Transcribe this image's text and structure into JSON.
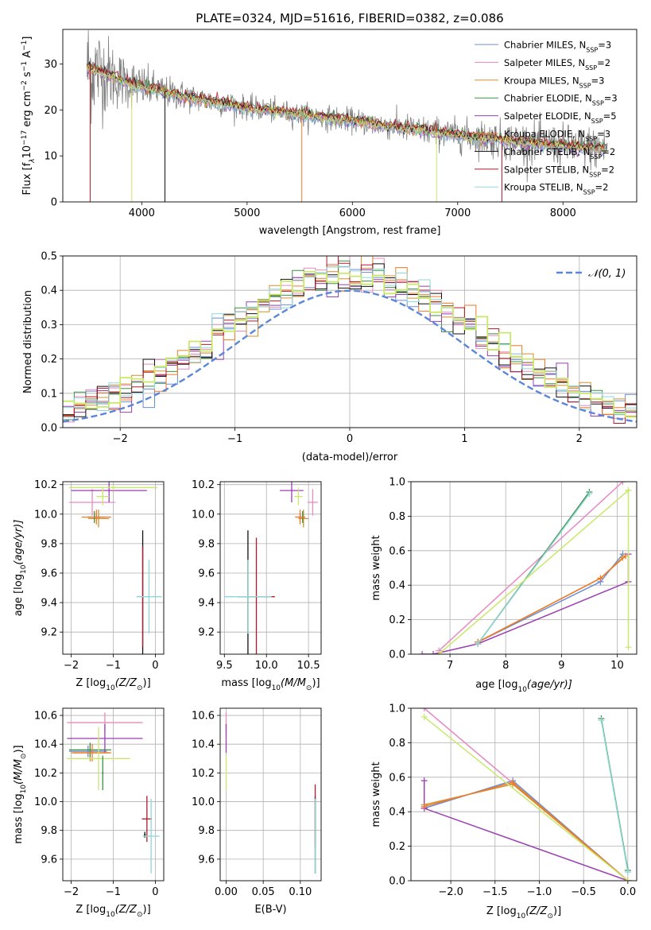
{
  "title": "PLATE=0324, MJD=51616, FIBERID=0382, z=0.086",
  "colors": {
    "Chabrier MILES": "#6b8fd6",
    "Salpeter MILES": "#e889c0",
    "Kroupa MILES": "#d38f2c",
    "Chabrier ELODIE": "#3f8f47",
    "Salpeter ELODIE": "#9b3fb3",
    "Kroupa ELODIE": "#f07a28",
    "Chabrier STELIB": "#111111",
    "Salpeter STELIB": "#b01a2a",
    "Kroupa STELIB": "#8fd7d6",
    "data": "#808080",
    "lime": "#c9e86a",
    "normal": "#5b86d9"
  },
  "legend_spectrum": [
    {
      "name": "Chabrier MILES",
      "label": "Chabrier MILES, N",
      "sub": "SSP",
      "tail": "=3"
    },
    {
      "name": "Salpeter MILES",
      "label": "Salpeter MILES, N",
      "sub": "SSP",
      "tail": "=2"
    },
    {
      "name": "Kroupa MILES",
      "label": "Kroupa MILES, N",
      "sub": "SSP",
      "tail": "=3"
    },
    {
      "name": "Chabrier ELODIE",
      "label": "Chabrier ELODIE, N",
      "sub": "SSP",
      "tail": "=3"
    },
    {
      "name": "Salpeter ELODIE",
      "label": "Salpeter ELODIE, N",
      "sub": "SSP",
      "tail": "=5"
    },
    {
      "name": "Kroupa ELODIE",
      "label": "Kroupa ELODIE, N",
      "sub": "SSP",
      "tail": "=3"
    },
    {
      "name": "Chabrier STELIB",
      "label": "Chabrier STELIB, N",
      "sub": "SSP",
      "tail": "=2"
    },
    {
      "name": "Salpeter STELIB",
      "label": "Salpeter STELIB, N",
      "sub": "SSP",
      "tail": "=2"
    },
    {
      "name": "Kroupa STELIB",
      "label": "Kroupa STELIB, N",
      "sub": "SSP",
      "tail": "=2"
    }
  ],
  "chart_data": [
    {
      "type": "line",
      "id": "spectrum",
      "title": "PLATE=0324, MJD=51616, FIBERID=0382, z=0.086",
      "xlabel": "wavelength [Angstrom, rest frame]",
      "ylabel_parts": [
        "Flux [f",
        "λ",
        "10",
        "−17",
        " erg cm",
        "−2",
        " s",
        "−1",
        " A",
        "−1",
        "]"
      ],
      "xlim": [
        3250,
        8700
      ],
      "ylim": [
        0,
        37.5
      ],
      "xticks": [
        4000,
        5000,
        6000,
        7000,
        8000
      ],
      "yticks": [
        0,
        10,
        20,
        30
      ],
      "continuum": {
        "x": [
          3500,
          3600,
          3800,
          4000,
          4500,
          5000,
          5500,
          6000,
          6500,
          7000,
          7500,
          8000,
          8400
        ],
        "y": [
          29,
          28.5,
          26.5,
          25,
          22.5,
          20.5,
          19,
          17.7,
          16,
          14.5,
          13.3,
          12.2,
          11.5
        ]
      },
      "noise_sigma": {
        "x": [
          3500,
          3800,
          4200,
          5000,
          6000,
          7000,
          7500,
          8000,
          8400
        ],
        "y": [
          12,
          6,
          3.5,
          2.5,
          2.6,
          3.5,
          4.2,
          4.5,
          4.8
        ]
      },
      "grid": false,
      "legend_position": "upper-right"
    },
    {
      "type": "line",
      "id": "residuals",
      "xlabel": "(data-model)/error",
      "ylabel": "Normed distribution",
      "xlim": [
        -2.5,
        2.5
      ],
      "ylim": [
        0,
        0.5
      ],
      "xticks": [
        -2,
        -1,
        0,
        1,
        2
      ],
      "yticks": [
        0,
        0.1,
        0.2,
        0.3,
        0.4,
        0.5
      ],
      "bin_width": 0.1,
      "reference": {
        "name": "N(0,1)",
        "label": "𝒩(0, 1)",
        "mean": 0,
        "sigma": 1
      },
      "grid": true,
      "legend_position": "upper-right"
    },
    {
      "type": "scatter",
      "id": "age_vs_Z",
      "xlabel_parts": [
        "Z [log",
        "10",
        "(Z/Z",
        "⊙",
        ")]"
      ],
      "ylabel_parts": [
        "age  [log",
        "10",
        "(age/yr)]"
      ],
      "xlim": [
        -2.2,
        0.2
      ],
      "ylim": [
        9.05,
        10.22
      ],
      "xticks": [
        -2,
        -1,
        0
      ],
      "yticks": [
        9.2,
        9.4,
        9.6,
        9.8,
        10.0,
        10.2
      ],
      "points": [
        {
          "s": "Chabrier MILES",
          "x": -1.4,
          "xe": 0.2,
          "y": 9.98,
          "ye": 0.03
        },
        {
          "s": "Salpeter MILES",
          "x": -1.5,
          "xe": 0.55,
          "y": 10.08,
          "ye": 0.09
        },
        {
          "s": "Kroupa MILES",
          "x": -1.35,
          "xe": 0.25,
          "y": 9.97,
          "ye": 0.06
        },
        {
          "s": "Chabrier ELODIE",
          "x": -1.45,
          "xe": 0.15,
          "y": 9.98,
          "ye": 0.04
        },
        {
          "s": "Salpeter ELODIE",
          "x": -1.1,
          "xe": 0.9,
          "y": 10.16,
          "ye": 0.08
        },
        {
          "s": "Kroupa ELODIE",
          "x": -1.4,
          "xe": 0.35,
          "y": 9.98,
          "ye": 0.05
        },
        {
          "s": "Chabrier STELIB",
          "x": -0.3,
          "xe": 0.02,
          "y": 9.44,
          "ye": 0.45
        },
        {
          "s": "Salpeter STELIB",
          "x": -0.3,
          "xe": 0.02,
          "y": 9.44,
          "ye": 0.34
        },
        {
          "s": "Kroupa STELIB",
          "x": -0.15,
          "xe": 0.3,
          "y": 9.44,
          "ye": 0.25
        },
        {
          "s": "lime",
          "x": -1.0,
          "xe": 1.05,
          "y": 10.18,
          "ye": 0.02
        },
        {
          "s": "lime",
          "x": -1.25,
          "xe": 0.15,
          "y": 10.12,
          "ye": 0.06
        }
      ],
      "grid": true
    },
    {
      "type": "scatter",
      "id": "age_vs_mass",
      "xlabel_parts": [
        "mass [log",
        "10",
        "(M/M",
        "⊙",
        ")]"
      ],
      "xlim": [
        9.45,
        10.65
      ],
      "ylim": [
        9.05,
        10.22
      ],
      "xticks": [
        9.5,
        10.0,
        10.5
      ],
      "yticks": [
        9.2,
        9.4,
        9.6,
        9.8,
        10.0,
        10.2
      ],
      "points": [
        {
          "s": "Chabrier MILES",
          "x": 10.4,
          "xe": 0.04,
          "y": 9.98,
          "ye": 0.03
        },
        {
          "s": "Salpeter MILES",
          "x": 10.55,
          "xe": 0.06,
          "y": 10.08,
          "ye": 0.09
        },
        {
          "s": "Kroupa MILES",
          "x": 10.44,
          "xe": 0.06,
          "y": 9.97,
          "ye": 0.06
        },
        {
          "s": "Chabrier ELODIE",
          "x": 10.43,
          "xe": 0.03,
          "y": 9.98,
          "ye": 0.04
        },
        {
          "s": "Salpeter ELODIE",
          "x": 10.3,
          "xe": 0.14,
          "y": 10.16,
          "ye": 0.08
        },
        {
          "s": "Kroupa ELODIE",
          "x": 10.4,
          "xe": 0.06,
          "y": 9.98,
          "ye": 0.05
        },
        {
          "s": "Chabrier STELIB",
          "x": 9.78,
          "xe": 0.02,
          "y": 9.44,
          "ye": 0.45
        },
        {
          "s": "Salpeter STELIB",
          "x": 9.88,
          "xe": 0.22,
          "y": 9.44,
          "ye": 0.4
        },
        {
          "s": "Kroupa STELIB",
          "x": 9.78,
          "xe": 0.28,
          "y": 9.44,
          "ye": 0.25
        },
        {
          "s": "lime",
          "x": 10.38,
          "xe": 0.05,
          "y": 10.12,
          "ye": 0.06
        }
      ],
      "grid": true
    },
    {
      "type": "line",
      "id": "massweight_vs_age",
      "xlabel_parts": [
        "age  [log",
        "10",
        "(age/yr)]"
      ],
      "ylabel": "mass weight",
      "xlim": [
        6.3,
        10.35
      ],
      "ylim": [
        0,
        1
      ],
      "xticks": [
        7,
        8,
        9,
        10
      ],
      "yticks": [
        0,
        0.2,
        0.4,
        0.6,
        0.8,
        1.0
      ],
      "series": [
        {
          "s": "Chabrier MILES",
          "x": [
            7.5,
            9.7,
            10.1
          ],
          "y": [
            0.07,
            0.42,
            0.58
          ]
        },
        {
          "s": "Salpeter MILES",
          "x": [
            6.8,
            10.1
          ],
          "y": [
            0.02,
            1.0
          ]
        },
        {
          "s": "Kroupa MILES",
          "x": [
            7.5,
            9.7,
            10.1
          ],
          "y": [
            0.07,
            0.44,
            0.56
          ]
        },
        {
          "s": "Chabrier ELODIE",
          "x": [
            7.5,
            9.5
          ],
          "y": [
            0.06,
            0.94
          ]
        },
        {
          "s": "Salpeter ELODIE",
          "x": [
            6.5,
            6.7,
            7.5,
            10.2,
            10.2
          ],
          "y": [
            0.0,
            0.0,
            0.06,
            0.42,
            0.58
          ]
        },
        {
          "s": "Kroupa ELODIE",
          "x": [
            7.5,
            9.7,
            10.15
          ],
          "y": [
            0.07,
            0.44,
            0.57
          ]
        },
        {
          "s": "Kroupa STELIB",
          "x": [
            7.5,
            9.5
          ],
          "y": [
            0.06,
            0.93
          ]
        },
        {
          "s": "lime",
          "x": [
            6.8,
            10.2,
            10.2,
            10.2
          ],
          "y": [
            0.0,
            0.95,
            0.04,
            0.95
          ]
        }
      ],
      "grid": true
    },
    {
      "type": "scatter",
      "id": "mass_vs_Z",
      "xlabel_parts": [
        "Z [log",
        "10",
        "(Z/Z",
        "⊙",
        ")]"
      ],
      "ylabel_parts": [
        "mass [log",
        "10",
        "(M/M",
        "⊙",
        ")]"
      ],
      "xlim": [
        -2.2,
        0.2
      ],
      "ylim": [
        9.45,
        10.65
      ],
      "xticks": [
        -2,
        -1,
        0
      ],
      "yticks": [
        9.6,
        9.8,
        10.0,
        10.2,
        10.4,
        10.6
      ],
      "points": [
        {
          "s": "Chabrier MILES",
          "x": -1.6,
          "xe": 0.45,
          "y": 10.35,
          "ye": 0.04
        },
        {
          "s": "Salpeter MILES",
          "x": -1.2,
          "xe": 0.9,
          "y": 10.55,
          "ye": 0.07
        },
        {
          "s": "Kroupa MILES",
          "x": -1.55,
          "xe": 0.45,
          "y": 10.34,
          "ye": 0.06
        },
        {
          "s": "Chabrier ELODIE",
          "x": -1.55,
          "xe": 0.5,
          "y": 10.36,
          "ye": 0.05
        },
        {
          "s": "Salpeter ELODIE",
          "x": -1.2,
          "xe": 0.9,
          "y": 10.44,
          "ye": 0.1
        },
        {
          "s": "Kroupa ELODIE",
          "x": -1.5,
          "xe": 0.45,
          "y": 10.34,
          "ye": 0.06
        },
        {
          "s": "Chabrier STELIB",
          "x": -0.25,
          "xe": 0.02,
          "y": 9.77,
          "ye": 0.02
        },
        {
          "s": "Salpeter STELIB",
          "x": -0.2,
          "xe": 0.12,
          "y": 9.88,
          "ye": 0.16
        },
        {
          "s": "Kroupa STELIB",
          "x": -0.1,
          "xe": 0.2,
          "y": 9.76,
          "ye": 0.26
        },
        {
          "s": "lime",
          "x": -1.35,
          "xe": 0.75,
          "y": 10.3,
          "ye": 0.22
        },
        {
          "s": "Chabrier ELODIE",
          "x": -1.25,
          "xe": 0.02,
          "y": 10.2,
          "ye": 0.12
        }
      ],
      "grid": true
    },
    {
      "type": "scatter",
      "id": "mass_vs_ebv",
      "xlabel": "E(B-V)",
      "xlim": [
        -0.008,
        0.128
      ],
      "ylim": [
        9.45,
        10.65
      ],
      "xticks": [
        0.0,
        0.05,
        0.1
      ],
      "yticks": [
        9.6,
        9.8,
        10.0,
        10.2,
        10.4,
        10.6
      ],
      "points": [
        {
          "s": "Salpeter MILES",
          "x": 0.0,
          "xe": 0,
          "y": 10.55,
          "ye": 0.07
        },
        {
          "s": "Salpeter ELODIE",
          "x": 0.0,
          "xe": 0,
          "y": 10.44,
          "ye": 0.1
        },
        {
          "s": "lime",
          "x": 0.0,
          "xe": 0,
          "y": 10.2,
          "ye": 0.12
        },
        {
          "s": "Chabrier STELIB",
          "x": 0.12,
          "xe": 0,
          "y": 9.77,
          "ye": 0.27
        },
        {
          "s": "Salpeter STELIB",
          "x": 0.12,
          "xe": 0,
          "y": 9.9,
          "ye": 0.22
        },
        {
          "s": "Kroupa STELIB",
          "x": 0.12,
          "xe": 0,
          "y": 9.76,
          "ye": 0.26
        }
      ],
      "grid": true
    },
    {
      "type": "line",
      "id": "massweight_vs_Z",
      "xlabel_parts": [
        "Z [log",
        "10",
        "(Z/Z",
        "⊙",
        ")]"
      ],
      "ylabel": "mass weight",
      "xlim": [
        -2.45,
        0.1
      ],
      "ylim": [
        0,
        1
      ],
      "xticks": [
        -2.0,
        -1.5,
        -1.0,
        -0.5,
        0.0
      ],
      "yticks": [
        0,
        0.2,
        0.4,
        0.6,
        0.8,
        1.0
      ],
      "series": [
        {
          "s": "Chabrier MILES",
          "x": [
            -2.3,
            -1.3,
            0.0
          ],
          "y": [
            0.42,
            0.58,
            0.0
          ]
        },
        {
          "s": "Salpeter MILES",
          "x": [
            -2.3,
            0.0
          ],
          "y": [
            1.0,
            0.0
          ]
        },
        {
          "s": "Kroupa MILES",
          "x": [
            -2.3,
            -1.3,
            0.0
          ],
          "y": [
            0.44,
            0.56,
            0.0
          ]
        },
        {
          "s": "Salpeter ELODIE",
          "x": [
            -2.3,
            -2.3,
            0.0
          ],
          "y": [
            0.58,
            0.42,
            0.0
          ]
        },
        {
          "s": "Kroupa ELODIE",
          "x": [
            -2.3,
            -1.3,
            0.0
          ],
          "y": [
            0.43,
            0.57,
            0.0
          ]
        },
        {
          "s": "Chabrier ELODIE",
          "x": [
            -0.3,
            0.0
          ],
          "y": [
            0.94,
            0.06
          ]
        },
        {
          "s": "Kroupa STELIB",
          "x": [
            -0.3,
            0.0
          ],
          "y": [
            0.93,
            0.05
          ]
        },
        {
          "s": "lime",
          "x": [
            -2.3,
            0.0
          ],
          "y": [
            0.95,
            0.0
          ]
        }
      ],
      "grid": true
    }
  ]
}
